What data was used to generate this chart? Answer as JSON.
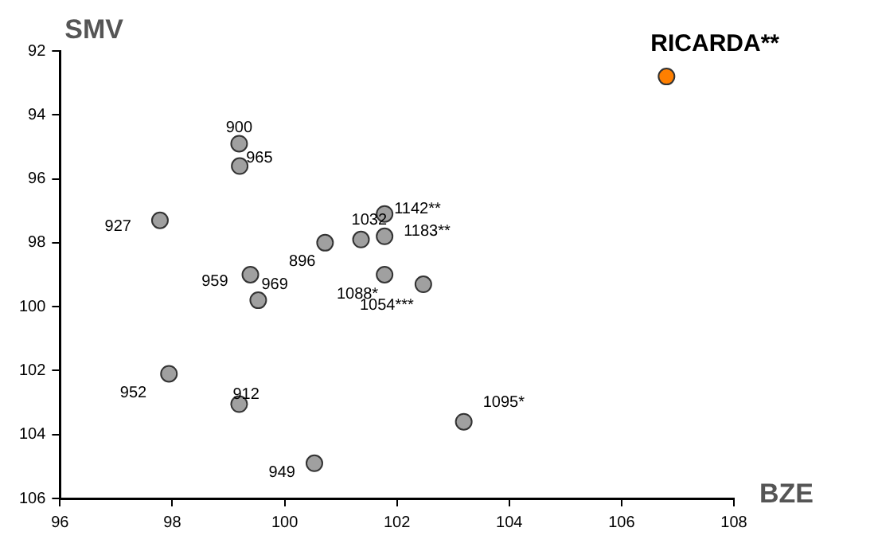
{
  "chart_data": {
    "type": "scatter",
    "xlabel": "BZE",
    "ylabel": "SMV",
    "xlim": [
      96,
      108
    ],
    "ylim": [
      106,
      92
    ],
    "xticks": [
      96,
      98,
      100,
      102,
      104,
      106,
      108
    ],
    "yticks": [
      92,
      94,
      96,
      98,
      100,
      102,
      104,
      106
    ],
    "marker": "circle",
    "series": [
      {
        "color": "#a0a0a0",
        "x": [
          99.19,
          99.2,
          97.78,
          101.36,
          100.72,
          101.78,
          101.78,
          99.39,
          99.53,
          101.78,
          102.47,
          97.94,
          99.19,
          100.53,
          103.19
        ],
        "values": [
          94.9,
          95.6,
          97.3,
          97.9,
          98.0,
          97.1,
          97.8,
          99.0,
          99.8,
          99.0,
          99.3,
          102.1,
          103.05,
          104.9,
          103.6
        ]
      },
      {
        "name": "RICARDA**",
        "color": "#ff7f00",
        "x": [
          106.8
        ],
        "values": [
          92.8
        ]
      }
    ],
    "annotations": [
      {
        "text": "900",
        "x": 99.19,
        "y": 94.9
      },
      {
        "text": "965",
        "x": 99.2,
        "y": 95.6
      },
      {
        "text": "927",
        "x": 97.78,
        "y": 97.3
      },
      {
        "text": "1032",
        "x": 101.36,
        "y": 97.9
      },
      {
        "text": "896",
        "x": 100.72,
        "y": 98.0
      },
      {
        "text": "1142**",
        "x": 101.78,
        "y": 97.1
      },
      {
        "text": "1183**",
        "x": 101.78,
        "y": 97.8
      },
      {
        "text": "959",
        "x": 99.39,
        "y": 99.0
      },
      {
        "text": "969",
        "x": 99.53,
        "y": 99.8
      },
      {
        "text": "1088*",
        "x": 101.78,
        "y": 99.0
      },
      {
        "text": "1054***",
        "x": 102.47,
        "y": 99.3
      },
      {
        "text": "952",
        "x": 97.94,
        "y": 102.1
      },
      {
        "text": "912",
        "x": 99.19,
        "y": 103.05
      },
      {
        "text": "949",
        "x": 100.53,
        "y": 104.9
      },
      {
        "text": "1095*",
        "x": 103.19,
        "y": 103.6
      }
    ]
  }
}
